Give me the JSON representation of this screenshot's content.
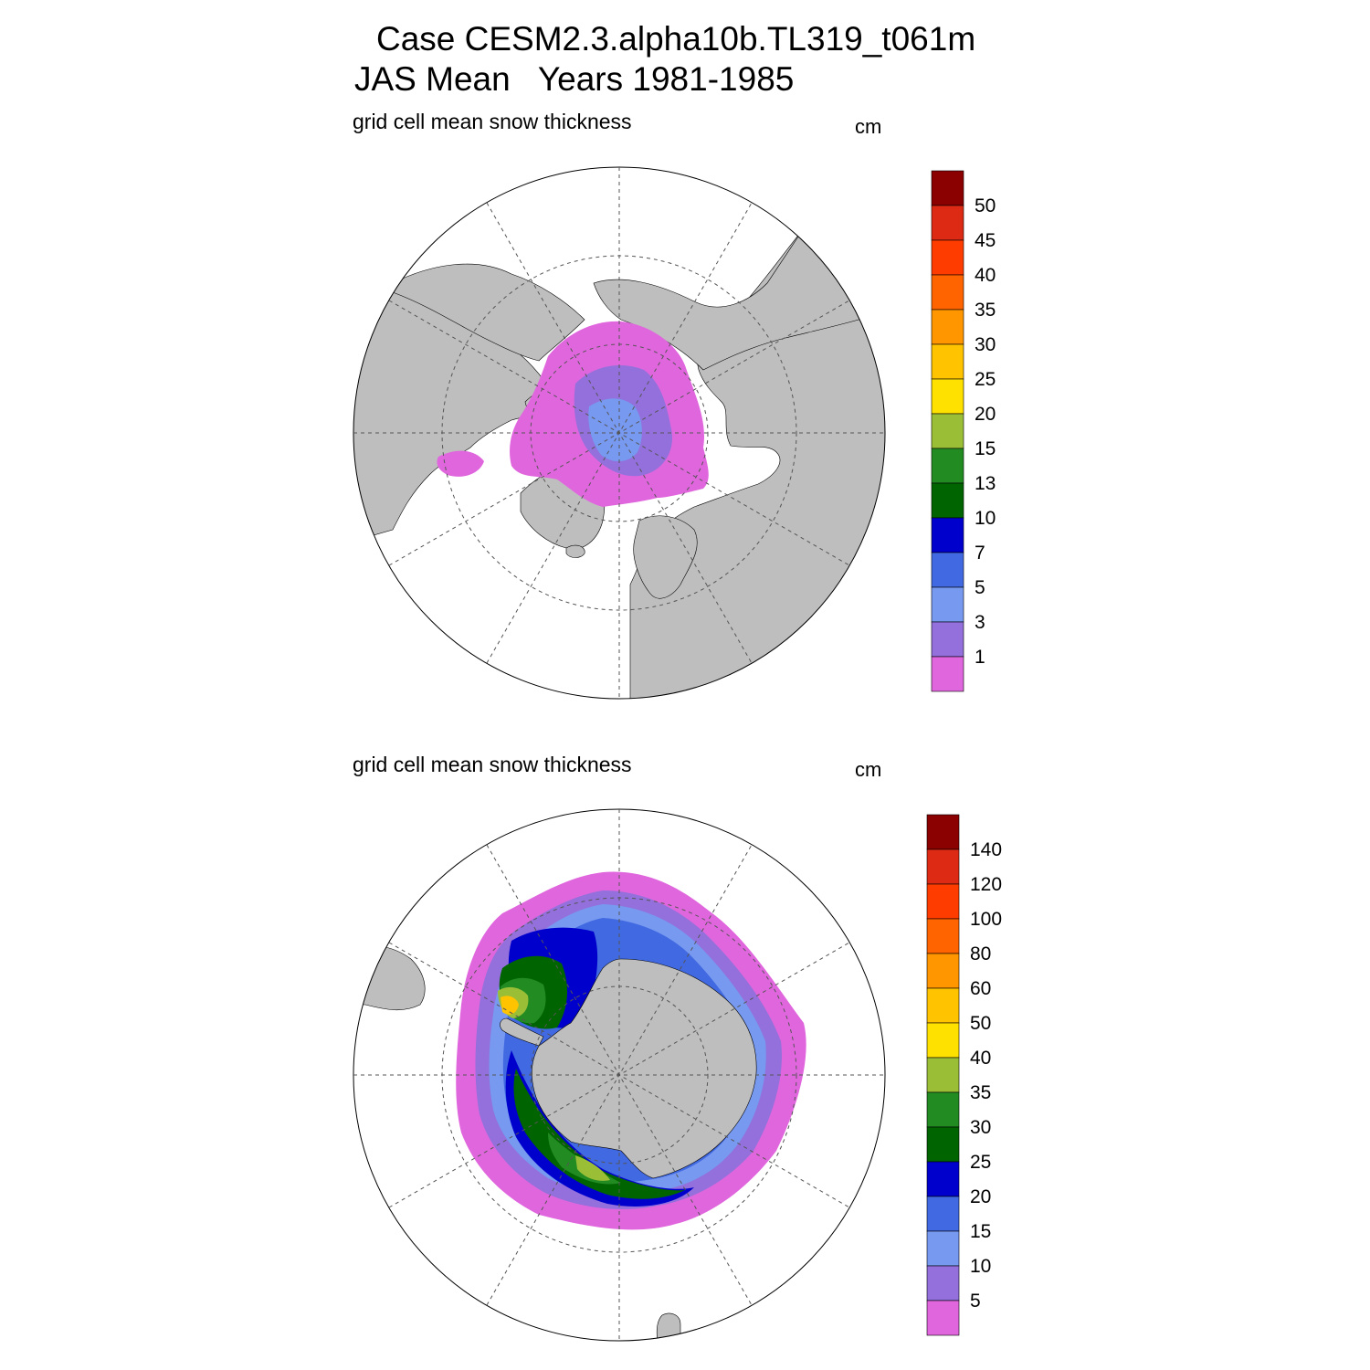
{
  "header": {
    "case_line": "Case CESM2.3.alpha10b.TL319_t061m",
    "period_line": "JAS Mean   Years 1981-1985"
  },
  "panels": [
    {
      "id": "arctic",
      "variable_label": "grid cell mean snow thickness",
      "units": "cm",
      "hemisphere": "north",
      "colorbar_labels": [
        "50",
        "45",
        "40",
        "35",
        "30",
        "25",
        "20",
        "15",
        "13",
        "10",
        "7",
        "5",
        "3",
        "1"
      ],
      "colors": [
        "#8b0000",
        "#dc2a14",
        "#ff3c00",
        "#ff6400",
        "#ff9600",
        "#ffc300",
        "#ffe100",
        "#9bbe37",
        "#228b22",
        "#006400",
        "#0000cd",
        "#4169e1",
        "#7799f0",
        "#9370db",
        "#e066dd"
      ]
    },
    {
      "id": "antarctic",
      "variable_label": "grid cell mean snow thickness",
      "units": "cm",
      "hemisphere": "south",
      "colorbar_labels": [
        "140",
        "120",
        "100",
        "80",
        "60",
        "50",
        "40",
        "35",
        "30",
        "25",
        "20",
        "15",
        "10",
        "5"
      ],
      "colors": [
        "#8b0000",
        "#dc2a14",
        "#ff3c00",
        "#ff6400",
        "#ff9600",
        "#ffc300",
        "#ffe100",
        "#9bbe37",
        "#228b22",
        "#006400",
        "#0000cd",
        "#4169e1",
        "#7799f0",
        "#9370db",
        "#e066dd"
      ]
    }
  ],
  "style": {
    "land": "#bebebe",
    "ocean": "#ffffff"
  }
}
